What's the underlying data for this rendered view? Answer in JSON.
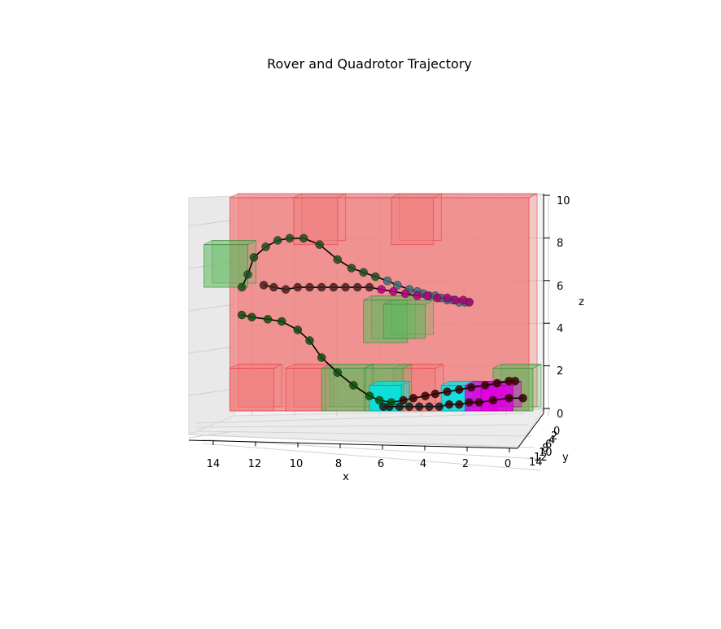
{
  "chart_data": {
    "type": "scatter",
    "title": "Rover and Quadrotor Trajectory",
    "xlabel": "x",
    "ylabel": "y",
    "zlabel": "z",
    "xlim": [
      0,
      15
    ],
    "zlim": [
      0,
      10
    ],
    "x_ticks": [
      "14",
      "12",
      "10",
      "8",
      "6",
      "4",
      "2",
      "0"
    ],
    "y_ticks": [
      "0",
      "2",
      "4",
      "6",
      "8",
      "10",
      "12",
      "14"
    ],
    "z_ticks": [
      "0",
      "2",
      "4",
      "6",
      "8",
      "10"
    ],
    "grid": true,
    "colors": {
      "wall": "#f08080",
      "obstacle_red": "#ff4c4c",
      "obstacle_green": "#5cb85c",
      "cyan": "#00e5e5",
      "magenta": "#e000e0",
      "rover_path": "#000000",
      "quad_path": "#000000"
    },
    "series": [
      {
        "x": [
          0.3,
          1.0,
          1.8,
          2.5,
          3.0,
          3.5,
          4.0,
          4.5,
          5.0,
          5.5,
          6.0,
          6.5,
          7.0,
          7.3
        ],
        "z": [
          0.6,
          0.6,
          0.5,
          0.4,
          0.4,
          0.3,
          0.3,
          0.2,
          0.2,
          0.2,
          0.2,
          0.2,
          0.2,
          0.2
        ]
      },
      {
        "x": [
          0.7,
          1.0,
          1.6,
          2.2,
          2.9,
          3.5,
          4.1,
          4.7,
          5.2,
          5.8,
          6.3,
          6.9,
          7.5,
          8.0,
          8.8,
          9.6,
          10.4,
          11.0,
          11.6,
          12.4,
          13.1,
          13.9,
          14.4
        ],
        "z": [
          1.4,
          1.4,
          1.3,
          1.2,
          1.1,
          1.0,
          0.9,
          0.8,
          0.7,
          0.6,
          0.5,
          0.4,
          0.5,
          0.7,
          1.2,
          1.8,
          2.5,
          3.3,
          3.8,
          4.2,
          4.3,
          4.4,
          4.5
        ]
      },
      {
        "x": [
          14.4,
          14.1,
          13.8,
          13.2,
          12.6,
          12.0,
          11.3,
          10.5,
          9.6,
          8.9,
          8.3,
          7.7,
          7.1,
          6.6,
          6.0,
          5.6,
          5.3,
          5.0,
          4.7,
          4.4,
          4.1,
          3.8,
          3.5,
          3.2,
          3.0
        ],
        "z": [
          5.8,
          6.4,
          7.2,
          7.7,
          8.0,
          8.1,
          8.1,
          7.8,
          7.1,
          6.7,
          6.5,
          6.3,
          6.1,
          5.9,
          5.7,
          5.6,
          5.5,
          5.4,
          5.4,
          5.3,
          5.2,
          5.2,
          5.1,
          5.1,
          5.1
        ]
      },
      {
        "x": [
          3.0,
          3.3,
          3.7,
          4.1,
          4.6,
          5.1,
          5.6,
          6.2,
          6.8,
          7.4,
          8.0,
          8.6,
          9.2,
          9.8,
          10.4,
          11.0,
          11.6,
          12.2,
          12.8,
          13.3
        ],
        "z": [
          5.1,
          5.2,
          5.2,
          5.3,
          5.3,
          5.4,
          5.4,
          5.5,
          5.6,
          5.7,
          5.8,
          5.8,
          5.8,
          5.8,
          5.8,
          5.8,
          5.8,
          5.7,
          5.8,
          5.9
        ]
      }
    ],
    "obstacles": [
      {
        "color": "red",
        "x": [
          0,
          15
        ],
        "z": [
          0,
          10
        ]
      },
      {
        "color": "red",
        "x": [
          9.6,
          11.8
        ],
        "z": [
          7.8,
          10
        ]
      },
      {
        "color": "red",
        "x": [
          4.8,
          6.9
        ],
        "z": [
          7.8,
          10
        ]
      },
      {
        "color": "red",
        "x": [
          12.8,
          15
        ],
        "z": [
          0,
          2
        ]
      },
      {
        "color": "red",
        "x": [
          10.2,
          12.2
        ],
        "z": [
          0,
          2
        ]
      },
      {
        "color": "red",
        "x": [
          4.7,
          6.8
        ],
        "z": [
          0,
          2
        ]
      },
      {
        "color": "green",
        "x": [
          14.1,
          16.3
        ],
        "z": [
          5.8,
          7.8
        ]
      },
      {
        "color": "green",
        "x": [
          6.1,
          8.3
        ],
        "z": [
          3.2,
          5.2
        ]
      },
      {
        "color": "green",
        "x": [
          5.2,
          7.3
        ],
        "z": [
          3.4,
          5.0
        ]
      },
      {
        "color": "green",
        "x": [
          6.3,
          8.3
        ],
        "z": [
          0,
          2
        ]
      },
      {
        "color": "green",
        "x": [
          8.2,
          10.4
        ],
        "z": [
          0,
          2
        ]
      },
      {
        "color": "green",
        "x": [
          -0.2,
          1.8
        ],
        "z": [
          0,
          2
        ]
      },
      {
        "color": "cyan",
        "x": [
          6.4,
          8.0
        ],
        "z": [
          0,
          1.2
        ]
      },
      {
        "color": "cyan",
        "x": [
          2.8,
          4.4
        ],
        "z": [
          0,
          1.2
        ]
      },
      {
        "color": "magenta",
        "x": [
          1.6,
          3.2
        ],
        "z": [
          0,
          1.2
        ]
      },
      {
        "color": "magenta",
        "x": [
          0.8,
          2.4
        ],
        "z": [
          0,
          1.2
        ]
      }
    ]
  }
}
